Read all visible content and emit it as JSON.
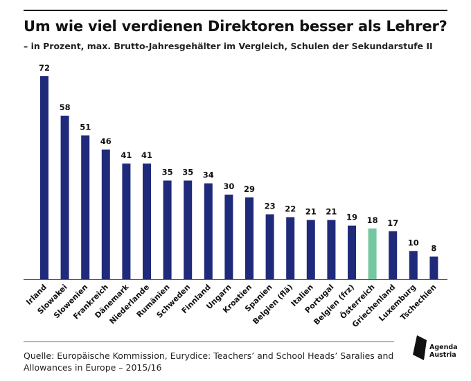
{
  "header": {
    "title": "Um wie viel verdienen Direktoren besser als Lehrer?",
    "subtitle": "– in Prozent, max. Brutto-Jahresgehälter im Vergleich, Schulen der Sekundarstufe II"
  },
  "footer": {
    "source_line1": "Quelle: Europäische Kommission, Eurydice: Teachers’ and School Heads’ Saralies and",
    "source_line2": "Allowances in Europe – 2015/16",
    "logo_line1": "Agenda",
    "logo_line2": "Austria"
  },
  "colors": {
    "bar": "#1f2a7a",
    "highlight": "#74c7a0",
    "text": "#111111"
  },
  "chart_data": {
    "type": "bar",
    "title": "Um wie viel verdienen Direktoren besser als Lehrer?",
    "subtitle": "– in Prozent, max. Brutto-Jahresgehälter im Vergleich, Schulen der Sekundarstufe II",
    "categories": [
      "Irland",
      "Slowakei",
      "Slowenien",
      "Frankreich",
      "Dänemark",
      "Niederlande",
      "Rumänien",
      "Schweden",
      "Finnland",
      "Ungarn",
      "Kroatien",
      "Spanien",
      "Belgien (flä)",
      "Italien",
      "Portugal",
      "Belgien (frz)",
      "Österreich",
      "Griechenland",
      "Luxemburg",
      "Tschechien"
    ],
    "values": [
      72,
      58,
      51,
      46,
      41,
      41,
      35,
      35,
      34,
      30,
      29,
      23,
      22,
      21,
      21,
      19,
      18,
      17,
      10,
      8
    ],
    "highlight_category": "Österreich",
    "data_labels": true,
    "ylim": [
      0,
      72
    ],
    "grid": false,
    "legend": "none"
  }
}
